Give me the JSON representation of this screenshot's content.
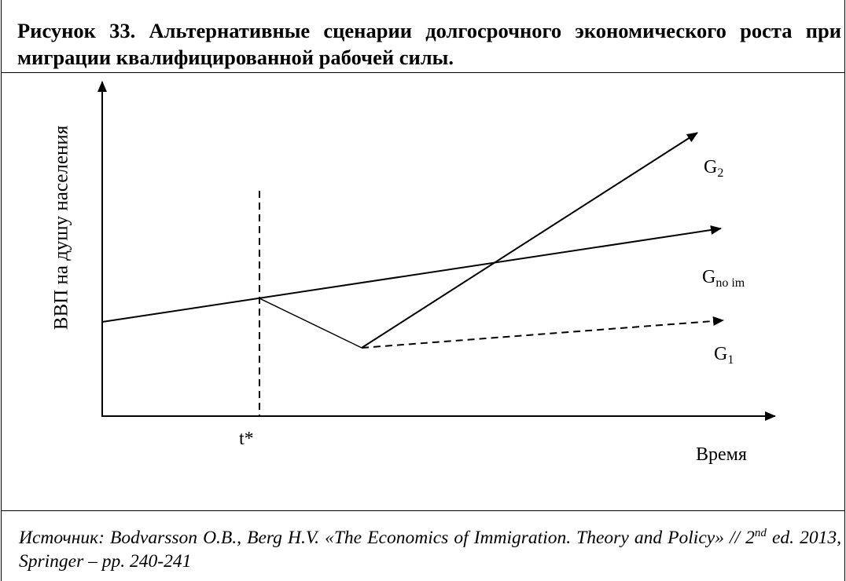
{
  "title": "Рисунок 33. Альтернативные сценарии долгосрочного экономического роста при миграции квалифицированной рабочей силы.",
  "figure": {
    "y_axis_label": "ВВП на душу населения",
    "x_axis_label": "Время",
    "marker_label": "t*",
    "curves": [
      {
        "base": "G",
        "sub": "2"
      },
      {
        "base": "G",
        "sub": "no im"
      },
      {
        "base": "G",
        "sub": "1"
      }
    ]
  },
  "source": {
    "before": "Источник: Bodvarsson O.B.,  Berg H.V. «The Economics of Immigration. Theory and Policy» // 2",
    "sup": "nd",
    "after": " ed. 2013, Springer – pp. 240-241"
  }
}
